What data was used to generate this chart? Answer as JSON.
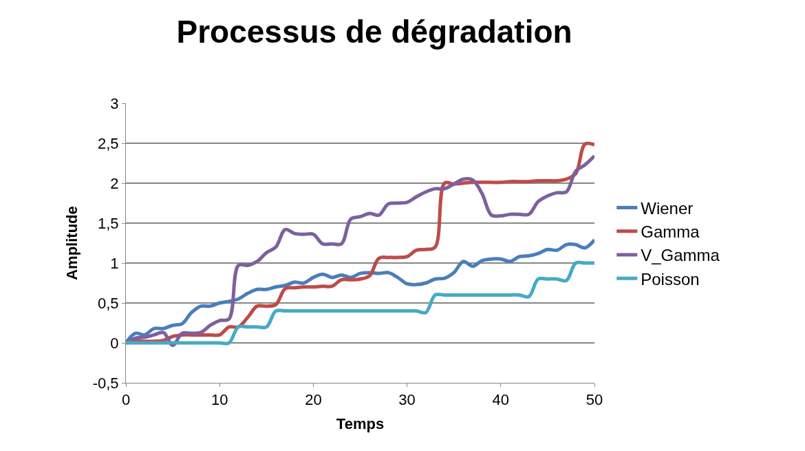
{
  "chart_data": {
    "type": "line",
    "title": "Processus de dégradation",
    "xlabel": "Temps",
    "ylabel": "Amplitude",
    "x": [
      0,
      1,
      2,
      3,
      4,
      5,
      6,
      7,
      8,
      9,
      10,
      11,
      12,
      13,
      14,
      15,
      16,
      17,
      18,
      19,
      20,
      21,
      22,
      23,
      24,
      25,
      26,
      27,
      28,
      29,
      30,
      31,
      32,
      33,
      34,
      35,
      36,
      37,
      38,
      39,
      40,
      41,
      42,
      43,
      44,
      45,
      46,
      47,
      48,
      49,
      50
    ],
    "series": [
      {
        "name": "Wiener",
        "color": "#4a7ebb",
        "values": [
          0,
          0.12,
          0.1,
          0.18,
          0.18,
          0.22,
          0.24,
          0.38,
          0.46,
          0.46,
          0.5,
          0.52,
          0.55,
          0.62,
          0.67,
          0.67,
          0.7,
          0.72,
          0.76,
          0.75,
          0.82,
          0.86,
          0.82,
          0.85,
          0.82,
          0.87,
          0.88,
          0.87,
          0.88,
          0.82,
          0.74,
          0.73,
          0.75,
          0.8,
          0.81,
          0.88,
          1.02,
          0.96,
          1.03,
          1.05,
          1.05,
          1.02,
          1.08,
          1.09,
          1.12,
          1.17,
          1.16,
          1.23,
          1.23,
          1.19,
          1.29
        ]
      },
      {
        "name": "Gamma",
        "color": "#be4b48",
        "values": [
          0,
          0.02,
          0.02,
          0.02,
          0.03,
          0.08,
          0.1,
          0.1,
          0.1,
          0.1,
          0.1,
          0.2,
          0.2,
          0.32,
          0.46,
          0.46,
          0.48,
          0.68,
          0.69,
          0.7,
          0.7,
          0.71,
          0.71,
          0.79,
          0.79,
          0.8,
          0.84,
          1.06,
          1.07,
          1.07,
          1.08,
          1.16,
          1.17,
          1.2,
          2.0,
          1.99,
          2.0,
          2.01,
          2.01,
          2.01,
          2.01,
          2.02,
          2.02,
          2.02,
          2.03,
          2.03,
          2.03,
          2.05,
          2.12,
          2.49,
          2.48
        ]
      },
      {
        "name": "V_Gamma",
        "color": "#7d60a0",
        "values": [
          0,
          0.06,
          0.07,
          0.1,
          0.13,
          -0.03,
          0.12,
          0.12,
          0.13,
          0.22,
          0.28,
          0.3,
          0.97,
          0.97,
          1.02,
          1.13,
          1.2,
          1.42,
          1.37,
          1.36,
          1.36,
          1.24,
          1.24,
          1.24,
          1.55,
          1.58,
          1.62,
          1.6,
          1.74,
          1.75,
          1.76,
          1.83,
          1.89,
          1.93,
          1.93,
          1.99,
          2.05,
          2.04,
          1.87,
          1.6,
          1.59,
          1.61,
          1.61,
          1.61,
          1.77,
          1.84,
          1.88,
          1.89,
          2.15,
          2.23,
          2.34
        ]
      },
      {
        "name": "Poisson",
        "color": "#46aac5",
        "values": [
          0,
          0,
          0,
          0,
          0,
          0,
          0,
          0,
          0,
          0,
          0,
          0,
          0.2,
          0.2,
          0.2,
          0.2,
          0.4,
          0.4,
          0.4,
          0.4,
          0.4,
          0.4,
          0.4,
          0.4,
          0.4,
          0.4,
          0.4,
          0.4,
          0.4,
          0.4,
          0.4,
          0.4,
          0.38,
          0.6,
          0.6,
          0.6,
          0.6,
          0.6,
          0.6,
          0.6,
          0.6,
          0.6,
          0.6,
          0.58,
          0.8,
          0.8,
          0.8,
          0.78,
          1.0,
          1.0,
          1.0
        ]
      }
    ],
    "xlim": [
      0,
      50
    ],
    "xticks": [
      0,
      10,
      20,
      30,
      40,
      50
    ],
    "ylim": [
      -0.5,
      3
    ],
    "yticks": [
      {
        "value": -0.5,
        "label": "-0,5"
      },
      0,
      {
        "value": 0.5,
        "label": "0,5"
      },
      1,
      {
        "value": 1.5,
        "label": "1,5"
      },
      2,
      {
        "value": 2.5,
        "label": "2,5"
      },
      3
    ],
    "grid": "y",
    "legend": "right",
    "marker": "none",
    "line_style": "solid"
  }
}
